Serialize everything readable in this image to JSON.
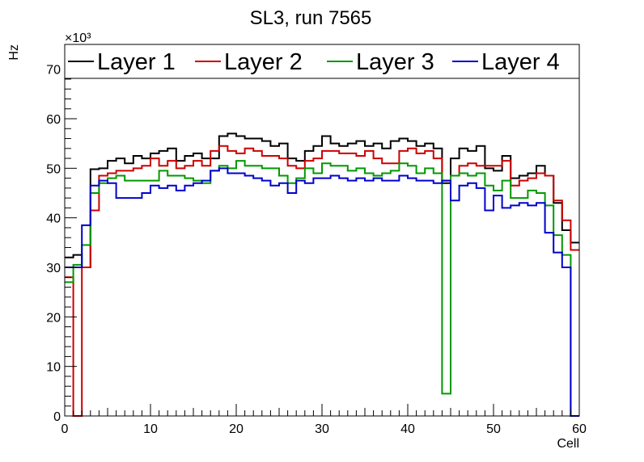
{
  "chart_data": {
    "type": "line",
    "step": true,
    "title": "SL3, run 7565",
    "xlabel": "Cell",
    "ylabel": "Hz",
    "y_multiplier_label": "×10³",
    "xlim": [
      0,
      60
    ],
    "ylim": [
      0,
      75
    ],
    "x_major_ticks": [
      0,
      10,
      20,
      30,
      40,
      50,
      60
    ],
    "y_major_ticks": [
      0,
      10,
      20,
      30,
      40,
      50,
      60,
      70
    ],
    "x_tick_labels": [
      "0",
      "10",
      "20",
      "30",
      "40",
      "50",
      "60"
    ],
    "y_tick_labels": [
      "0",
      "10",
      "20",
      "30",
      "40",
      "50",
      "60",
      "70"
    ],
    "bin_edges_start": 0,
    "bin_width": 1,
    "y_units": "thousands of Hz",
    "series": [
      {
        "name": "Layer 1",
        "color": "#000000",
        "values": [
          32.0,
          32.5,
          30.0,
          49.8,
          50.0,
          51.5,
          52.0,
          51.0,
          52.5,
          52.0,
          53.0,
          53.5,
          54.0,
          51.5,
          52.5,
          53.0,
          52.0,
          52.0,
          56.5,
          57.0,
          56.5,
          56.0,
          56.0,
          55.5,
          54.5,
          55.0,
          52.0,
          51.5,
          53.5,
          54.5,
          56.5,
          55.0,
          54.5,
          55.0,
          55.5,
          54.5,
          55.0,
          54.0,
          55.5,
          56.0,
          55.5,
          54.5,
          55.0,
          54.0,
          47.0,
          52.0,
          54.0,
          53.5,
          54.5,
          50.0,
          49.5,
          52.5,
          48.0,
          48.5,
          49.0,
          50.5,
          48.5,
          43.0,
          37.5,
          35.0
        ]
      },
      {
        "name": "Layer 2",
        "color": "#cc0000",
        "values": [
          28.0,
          0.0,
          30.0,
          41.5,
          48.5,
          49.0,
          49.5,
          49.5,
          50.0,
          50.5,
          52.0,
          50.5,
          51.5,
          50.0,
          50.5,
          51.5,
          50.5,
          53.5,
          54.5,
          53.5,
          53.0,
          54.0,
          53.5,
          52.5,
          52.5,
          52.0,
          50.5,
          50.0,
          51.5,
          52.0,
          53.5,
          53.5,
          53.0,
          53.0,
          52.5,
          53.5,
          52.0,
          51.0,
          51.0,
          53.5,
          54.0,
          53.0,
          53.5,
          52.0,
          47.5,
          48.5,
          50.5,
          51.0,
          50.5,
          50.5,
          50.5,
          51.5,
          46.5,
          47.5,
          48.0,
          49.0,
          48.5,
          43.5,
          39.5,
          33.5
        ]
      },
      {
        "name": "Layer 3",
        "color": "#009900",
        "values": [
          27.0,
          30.5,
          34.5,
          45.0,
          47.0,
          48.0,
          48.5,
          47.5,
          47.5,
          47.5,
          47.5,
          49.5,
          48.5,
          48.5,
          48.0,
          47.5,
          47.0,
          49.5,
          50.5,
          50.0,
          51.5,
          50.5,
          50.5,
          50.0,
          50.0,
          48.5,
          47.0,
          48.0,
          50.0,
          49.0,
          51.0,
          50.5,
          50.5,
          49.5,
          50.0,
          49.0,
          48.5,
          49.0,
          49.5,
          51.0,
          50.5,
          49.0,
          50.0,
          49.0,
          4.5,
          48.5,
          49.0,
          48.5,
          49.0,
          46.5,
          45.5,
          47.5,
          44.0,
          44.0,
          45.5,
          45.0,
          42.5,
          36.5,
          32.5,
          0.0
        ]
      },
      {
        "name": "Layer 4",
        "color": "#0000cc",
        "values": [
          30.0,
          30.0,
          38.5,
          46.5,
          47.5,
          47.0,
          44.0,
          44.0,
          44.0,
          45.0,
          46.5,
          46.0,
          46.5,
          45.5,
          46.5,
          47.0,
          47.5,
          49.5,
          50.0,
          49.0,
          49.0,
          48.5,
          48.0,
          47.5,
          46.5,
          47.0,
          45.0,
          47.5,
          47.0,
          48.0,
          48.0,
          48.5,
          48.0,
          47.5,
          48.0,
          47.5,
          48.0,
          47.5,
          47.5,
          48.5,
          48.0,
          47.5,
          47.5,
          47.0,
          47.5,
          43.5,
          46.5,
          47.0,
          46.0,
          41.5,
          44.5,
          42.0,
          42.5,
          43.0,
          42.5,
          43.0,
          37.0,
          33.0,
          30.0,
          0.0
        ]
      }
    ]
  }
}
